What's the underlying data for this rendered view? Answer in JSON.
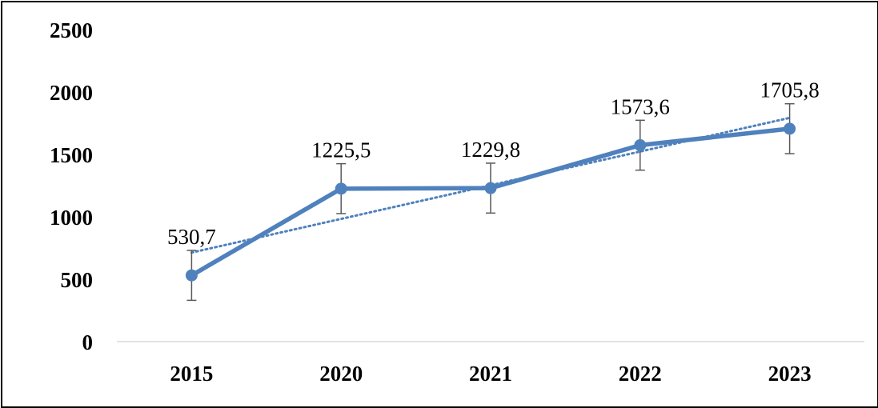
{
  "chart_data": {
    "type": "line",
    "title": "",
    "xlabel": "",
    "ylabel": "",
    "categories": [
      "2015",
      "2020",
      "2021",
      "2022",
      "2023"
    ],
    "series": [
      {
        "values": [
          530.7,
          1225.5,
          1229.8,
          1573.6,
          1705.8
        ],
        "data_labels": [
          "530,7",
          "1225,5",
          "1229,8",
          "1573,6",
          "1705,8"
        ],
        "error": [
          200,
          200,
          200,
          200,
          200
        ],
        "color": "#4f81bd",
        "trendline": "linear"
      }
    ],
    "yticks": [
      "0",
      "500",
      "1000",
      "1500",
      "2000",
      "2500"
    ],
    "ylim": [
      0,
      2500
    ],
    "grid": false,
    "legend": "none"
  }
}
